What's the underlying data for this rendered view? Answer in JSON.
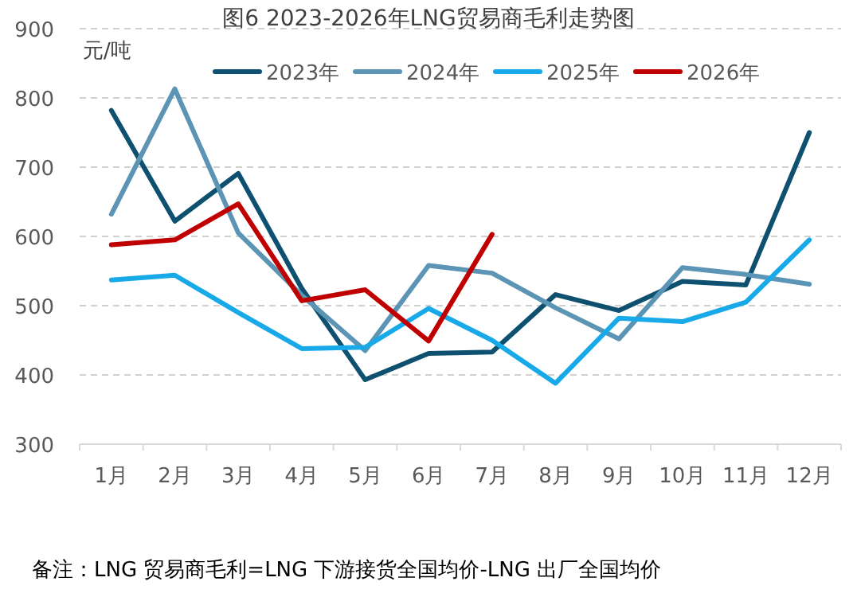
{
  "chart_data": {
    "type": "line",
    "title": "图6 2023-2026年LNG贸易商毛利走势图",
    "ylabel": "元/吨",
    "categories": [
      "1月",
      "2月",
      "3月",
      "4月",
      "5月",
      "6月",
      "7月",
      "8月",
      "9月",
      "10月",
      "11月",
      "12月"
    ],
    "series": [
      {
        "name": "2023年",
        "color": "#0e5070",
        "values": [
          782,
          622,
          691,
          525,
          393,
          431,
          433,
          516,
          493,
          535,
          530,
          750
        ]
      },
      {
        "name": "2024年",
        "color": "#5b94b4",
        "values": [
          632,
          813,
          605,
          515,
          435,
          558,
          547,
          497,
          452,
          555,
          545,
          531
        ]
      },
      {
        "name": "2025年",
        "color": "#17a9e8",
        "values": [
          537,
          544,
          490,
          438,
          440,
          496,
          450,
          388,
          482,
          477,
          505,
          595
        ]
      },
      {
        "name": "2026年",
        "color": "#c00000",
        "values": [
          588,
          595,
          647,
          507,
          523,
          449,
          603,
          null,
          null,
          null,
          null,
          null
        ]
      }
    ],
    "ylim": [
      300,
      900
    ],
    "yticks": [
      300,
      400,
      500,
      600,
      700,
      800,
      900
    ],
    "grid": "y",
    "legend": "top",
    "annotations": [
      "备注：LNG 贸易商毛利=LNG 下游接货全国均价-LNG 出厂全国均价"
    ]
  }
}
